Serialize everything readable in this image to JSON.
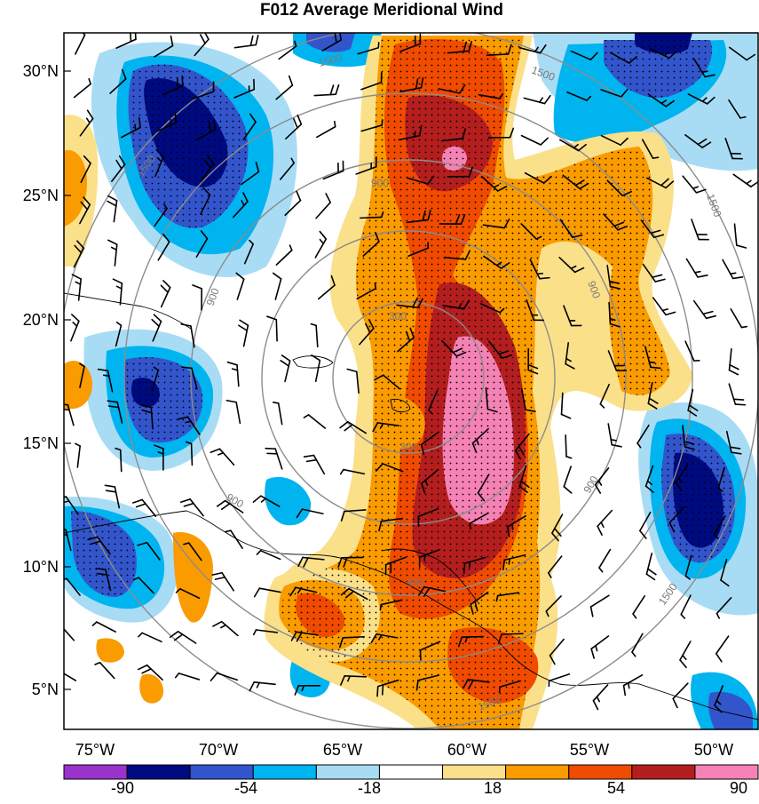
{
  "title": "F012 Average Meridional Wind",
  "lat_labels": [
    "30°N",
    "25°N",
    "20°N",
    "15°N",
    "10°N",
    "5°N"
  ],
  "lon_labels": [
    "75°W",
    "70°W",
    "65°W",
    "60°W",
    "55°W",
    "50°W"
  ],
  "range_ring_labels": [
    "300",
    "900",
    "1500"
  ],
  "colorbar": {
    "tick_labels": [
      "-90",
      "-54",
      "-18",
      "18",
      "54",
      "90"
    ],
    "colors": [
      "#9933cc",
      "#000a80",
      "#3355cc",
      "#00b4f0",
      "#a8dcf5",
      "#ffffff",
      "#fbe08a",
      "#fa9b00",
      "#f04b00",
      "#b41e1e",
      "#f582b4"
    ]
  },
  "field_colors": {
    "neg_extreme": "#000a80",
    "neg_strong": "#3355cc",
    "neg_mid": "#00b4f0",
    "neg_weak": "#a8dcf5",
    "pos_weak": "#fbe08a",
    "pos_mid": "#fa9b00",
    "pos_strong": "#f04b00",
    "pos_very": "#b41e1e",
    "pos_extreme": "#f582b4"
  }
}
